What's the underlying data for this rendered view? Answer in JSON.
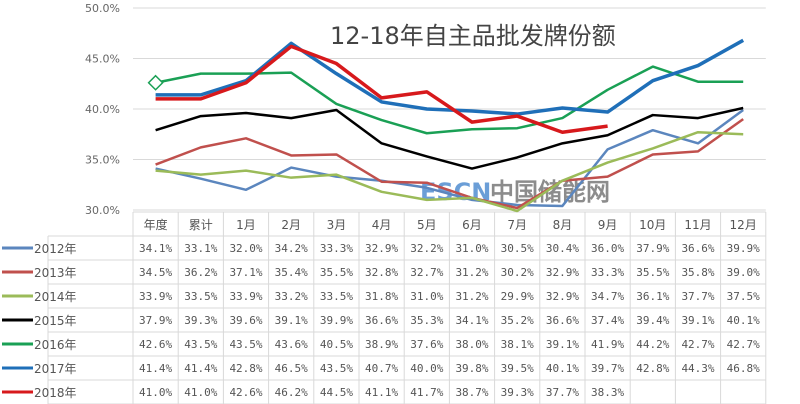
{
  "chart_data": {
    "type": "line",
    "title": "12-18年自主品批发牌份额",
    "xlabel": "",
    "ylabel": "",
    "ylim": [
      30,
      50
    ],
    "yticks": [
      "30.0%",
      "35.0%",
      "40.0%",
      "45.0%",
      "50.0%"
    ],
    "grid": true,
    "legend": "table-left",
    "categories": [
      "年度",
      "累计",
      "1月",
      "2月",
      "3月",
      "4月",
      "5月",
      "6月",
      "7月",
      "8月",
      "9月",
      "10月",
      "11月",
      "12月"
    ],
    "series": [
      {
        "name": "2012年",
        "color": "#5b86be",
        "values": [
          34.1,
          33.1,
          32.0,
          34.2,
          33.3,
          32.9,
          32.2,
          31.0,
          30.5,
          30.4,
          36.0,
          37.9,
          36.6,
          39.9
        ]
      },
      {
        "name": "2013年",
        "color": "#c0504d",
        "values": [
          34.5,
          36.2,
          37.1,
          35.4,
          35.5,
          32.8,
          32.7,
          31.2,
          30.2,
          32.9,
          33.3,
          35.5,
          35.8,
          39.0
        ]
      },
      {
        "name": "2014年",
        "color": "#9bbb59",
        "values": [
          33.9,
          33.5,
          33.9,
          33.2,
          33.5,
          31.8,
          31.0,
          31.2,
          29.9,
          32.9,
          34.7,
          36.1,
          37.7,
          37.5
        ]
      },
      {
        "name": "2015年",
        "color": "#000000",
        "values": [
          37.9,
          39.3,
          39.6,
          39.1,
          39.9,
          36.6,
          35.3,
          34.1,
          35.2,
          36.6,
          37.4,
          39.4,
          39.1,
          40.1
        ]
      },
      {
        "name": "2016年",
        "color": "#1aa055",
        "values": [
          42.6,
          43.5,
          43.5,
          43.6,
          40.5,
          38.9,
          37.6,
          38.0,
          38.1,
          39.1,
          41.9,
          44.2,
          42.7,
          42.7
        ]
      },
      {
        "name": "2017年",
        "color": "#1f6fb8",
        "values": [
          41.4,
          41.4,
          42.8,
          46.5,
          43.5,
          40.7,
          40.0,
          39.8,
          39.5,
          40.1,
          39.7,
          42.8,
          44.3,
          46.8
        ]
      },
      {
        "name": "2018年",
        "color": "#d7191c",
        "values": [
          41.0,
          41.0,
          42.6,
          46.2,
          44.5,
          41.1,
          41.7,
          38.7,
          39.3,
          37.7,
          38.3,
          null,
          null,
          null
        ]
      }
    ]
  },
  "watermark": {
    "text": "ESCN",
    "text2": "中国储能网"
  }
}
